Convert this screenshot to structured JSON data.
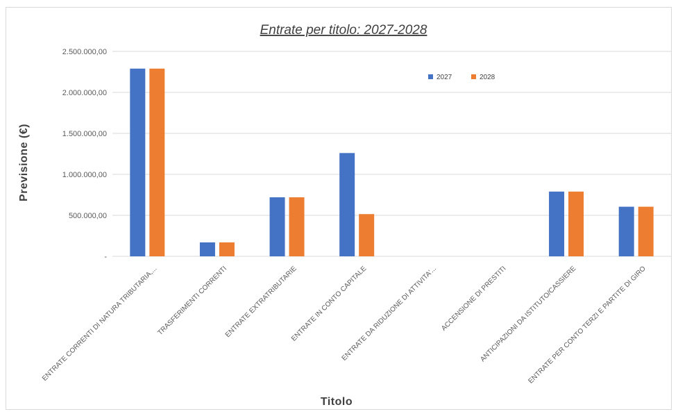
{
  "chart_data": {
    "type": "bar",
    "title": "Entrate per titolo:  2027-2028",
    "xlabel": "Titolo",
    "ylabel": "Previsione (€)",
    "ylim": [
      0,
      2500000
    ],
    "yticks": [
      {
        "value": 0,
        "label": "-"
      },
      {
        "value": 500000,
        "label": "500.000,00"
      },
      {
        "value": 1000000,
        "label": "1.000.000,00"
      },
      {
        "value": 1500000,
        "label": "1.500.000,00"
      },
      {
        "value": 2000000,
        "label": "2.000.000,00"
      },
      {
        "value": 2500000,
        "label": "2.500.000,00"
      }
    ],
    "grid": true,
    "legend_position": "top-right",
    "categories": [
      "ENTRATE CORRENTI DI NATURA TRIBUTARIA,...",
      "TRASFERIMENTI CORRENTI",
      "ENTRATE EXTRATRIBUTARIE",
      "ENTRATE IN CONTO CAPITALE",
      "ENTRATE DA RIDUZIONE DI ATTIVITA'...",
      "ACCENSIONE DI PRESTITI",
      "ANTICIPAZIONI DA ISTITUTO/CASSIERE",
      "ENTRATE PER CONTO TERZI E PARTITE DI GIRO"
    ],
    "series": [
      {
        "name": "2027",
        "color": "#4472c4",
        "values": [
          2290000,
          170000,
          720000,
          1260000,
          0,
          0,
          790000,
          605000
        ]
      },
      {
        "name": "2028",
        "color": "#ed7d31",
        "values": [
          2290000,
          170000,
          720000,
          515000,
          0,
          0,
          790000,
          605000
        ]
      }
    ]
  }
}
